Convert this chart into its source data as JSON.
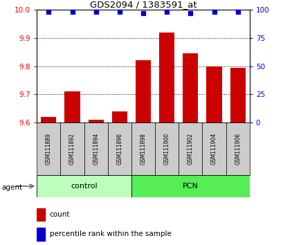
{
  "title": "GDS2094 / 1383591_at",
  "samples": [
    "GSM111889",
    "GSM111892",
    "GSM111894",
    "GSM111896",
    "GSM111898",
    "GSM111900",
    "GSM111902",
    "GSM111904",
    "GSM111906"
  ],
  "bar_values": [
    9.62,
    9.71,
    9.61,
    9.64,
    9.82,
    9.92,
    9.845,
    9.8,
    9.795
  ],
  "percentile_values": [
    98,
    98,
    98,
    98,
    97,
    98,
    97,
    98,
    98
  ],
  "ylim_left": [
    9.6,
    10.0
  ],
  "ylim_right": [
    0,
    100
  ],
  "yticks_left": [
    9.6,
    9.7,
    9.8,
    9.9,
    10.0
  ],
  "yticks_right": [
    0,
    25,
    50,
    75,
    100
  ],
  "bar_color": "#cc0000",
  "dot_color": "#0000cc",
  "control_label": "control",
  "pcn_label": "PCN",
  "agent_label": "agent",
  "control_indices": [
    0,
    1,
    2,
    3
  ],
  "pcn_indices": [
    4,
    5,
    6,
    7,
    8
  ],
  "control_bg": "#bbffbb",
  "pcn_bg": "#55ee55",
  "sample_bg": "#cccccc",
  "legend_count_label": "count",
  "legend_percentile_label": "percentile rank within the sample",
  "bar_bottom": 9.6
}
